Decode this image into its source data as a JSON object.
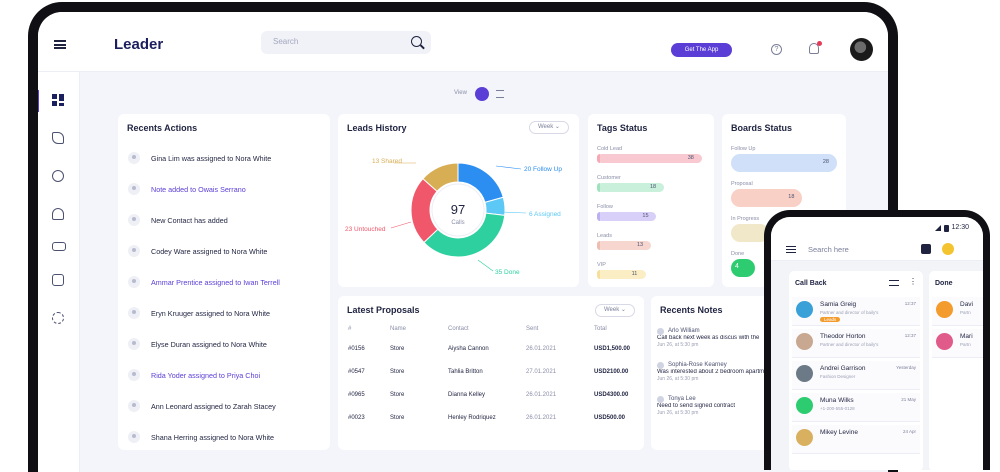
{
  "app": {
    "logo": "Leader",
    "search_placeholder": "Search",
    "get_app": "Get The App",
    "help_glyph": "?"
  },
  "view": {
    "label": "View"
  },
  "recent_actions": {
    "title": "Recents Actions",
    "items": [
      {
        "text": "Gina Lim was assigned to Nora White",
        "color": "#1f2340"
      },
      {
        "text": "Note added to Owais Serrano",
        "color": "#5b3ed6"
      },
      {
        "text": "New Contact has added",
        "color": "#1f2340"
      },
      {
        "text": "Codey Ware assigned to Nora White",
        "color": "#1f2340"
      },
      {
        "text": "Ammar Prentice assigned to Iwan Terrell",
        "color": "#5b3ed6"
      },
      {
        "text": "Eryn Kruuger assigned to Nora White",
        "color": "#1f2340"
      },
      {
        "text": "Elyse Duran assigned to Nora White",
        "color": "#1f2340"
      },
      {
        "text": "Rida Yoder assigned to Priya Choi",
        "color": "#5b3ed6"
      },
      {
        "text": "Ann Leonard assigned to Zarah Stacey",
        "color": "#1f2340"
      },
      {
        "text": "Shana Herring assigned to Nora White",
        "color": "#1f2340"
      }
    ]
  },
  "leads_history": {
    "title": "Leads History",
    "range": "Week",
    "center_value": "97",
    "center_label": "Calls",
    "labels": {
      "shared": "13 Shared",
      "follow_up": "20 Follow Up",
      "assigned": "6 Assigned",
      "done": "35 Done",
      "untouched": "23 Untouched"
    }
  },
  "chart_data": {
    "type": "pie",
    "categories": [
      "Follow Up",
      "Assigned",
      "Done",
      "Untouched",
      "Shared"
    ],
    "values": [
      20,
      6,
      35,
      23,
      13
    ],
    "colors": [
      "#2b8ef0",
      "#5cc8f5",
      "#2ed0a0",
      "#f0576b",
      "#d8ae55"
    ],
    "title": "Leads History",
    "center": "97 Calls"
  },
  "tags_status": {
    "title": "Tags Status",
    "items": [
      {
        "label": "Cold Lead",
        "value": "38",
        "frac": 0.97,
        "color": "#f8c9d0",
        "chip": "#f6a8b5"
      },
      {
        "label": "Customer",
        "value": "18",
        "frac": 0.62,
        "color": "#c8f0da",
        "chip": "#9fe2bd"
      },
      {
        "label": "Follow",
        "value": "15",
        "frac": 0.55,
        "color": "#d8d0f8",
        "chip": "#bcb0f0"
      },
      {
        "label": "Leads",
        "value": "13",
        "frac": 0.5,
        "color": "#f6d6cf",
        "chip": "#eebcb0"
      },
      {
        "label": "VIP",
        "value": "11",
        "frac": 0.45,
        "color": "#fbeec5",
        "chip": "#f6df9b"
      }
    ]
  },
  "boards_status": {
    "title": "Boards Status",
    "items": [
      {
        "label": "Follow Up",
        "value": "28",
        "frac": 0.98,
        "color": "#cfe0f8"
      },
      {
        "label": "Proposal",
        "value": "18",
        "frac": 0.66,
        "color": "#f8d0c5"
      },
      {
        "label": "In Progress",
        "value": "",
        "frac": 0.35,
        "color": "#f0e8c8"
      },
      {
        "label": "Done",
        "value": "4",
        "frac": 0.22,
        "color": "#2ecc71"
      }
    ]
  },
  "proposals": {
    "title": "Latest Proposals",
    "range": "Week",
    "headers": [
      "#",
      "Name",
      "Contact",
      "Sent",
      "Total"
    ],
    "rows": [
      [
        "#0156",
        "Store",
        "Aiysha Cannon",
        "26.01.2021",
        "USD1,500.00"
      ],
      [
        "#0547",
        "Store",
        "Tahlia Britton",
        "27.01.2021",
        "USD2100.00"
      ],
      [
        "#0965",
        "Store",
        "Dianna Kelley",
        "26.01.2021",
        "USD4300.00"
      ],
      [
        "#0023",
        "Store",
        "Henley Rodriquez",
        "26.01.2021",
        "USD500.00"
      ]
    ]
  },
  "recent_notes": {
    "title": "Recents Notes",
    "items": [
      {
        "who": "Arlo William",
        "msg1": "Call back next week as discus with the",
        "msg2": "",
        "date": "Jun 26, at 5:30 pm"
      },
      {
        "who": "Sophia-Rose Kearney",
        "msg1": "Was interested about 2 bedroom apartm",
        "msg2": "",
        "date": "Jun 26, at 5:30 pm"
      },
      {
        "who": "Tonya Lee",
        "msg1": "Need to send signed contract",
        "msg2": "",
        "date": "Jun 26, at 5:30 pm"
      }
    ]
  },
  "phone": {
    "time": "12:30",
    "search_placeholder": "Search here",
    "call_back": {
      "title": "Call Back",
      "cards": [
        {
          "name": "Samia Greig",
          "role": "Partner and director of baily's",
          "date": "12:37",
          "tag": "Leads",
          "avatar": "#3aa0d8"
        },
        {
          "name": "Theodor Horton",
          "role": "Partner and director of baily's",
          "date": "12:37",
          "tag": "",
          "avatar": "#c8a890"
        },
        {
          "name": "Andrei Garrison",
          "role": "Fashion Designer",
          "date": "Yesterday",
          "tag": "",
          "avatar": "#6b7a86"
        },
        {
          "name": "Muna Wilks",
          "role": "+1-200-555-0128",
          "date": "21 May",
          "tag": "",
          "avatar": "#2ecc71"
        },
        {
          "name": "Mikey Levine",
          "role": "",
          "date": "24 Apr",
          "tag": "",
          "avatar": "#d8b060"
        }
      ]
    },
    "done": {
      "title": "Done",
      "cards": [
        {
          "name": "Davi",
          "role": "Partn",
          "avatar": "#f39b2c"
        },
        {
          "name": "Mari",
          "role": "Partn",
          "avatar": "#e05a8a"
        }
      ]
    }
  }
}
